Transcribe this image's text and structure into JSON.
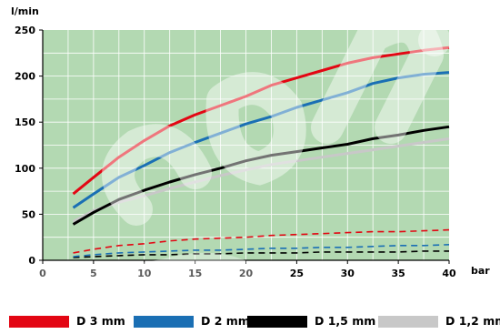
{
  "chart_data": {
    "type": "line",
    "ylabel": "l/min",
    "xlabel": "bar",
    "xlim": [
      0,
      40
    ],
    "ylim": [
      0,
      250
    ],
    "xticks": [
      0,
      5,
      10,
      15,
      20,
      25,
      30,
      35,
      40
    ],
    "yticks": [
      0,
      50,
      100,
      150,
      200,
      250
    ],
    "grid": true,
    "background": "#b3d9b2",
    "legend_position": "bottom",
    "x": [
      3,
      5,
      7.5,
      10,
      12.5,
      15,
      17.5,
      20,
      22.5,
      25,
      27.5,
      30,
      32.5,
      35,
      37.5,
      40
    ],
    "series": [
      {
        "name": "D 3 mm",
        "color": "#e30613",
        "style": "solid",
        "values": [
          72,
          90,
          112,
          130,
          146,
          158,
          168,
          178,
          190,
          198,
          206,
          214,
          220,
          224,
          228,
          231
        ]
      },
      {
        "name": "D 2 mm",
        "color": "#1a6fb4",
        "style": "solid",
        "values": [
          57,
          72,
          90,
          103,
          117,
          128,
          138,
          148,
          156,
          166,
          174,
          182,
          192,
          198,
          202,
          204
        ]
      },
      {
        "name": "D 1,5 mm",
        "color": "#000000",
        "style": "solid",
        "values": [
          39,
          52,
          66,
          76,
          85,
          93,
          100,
          108,
          114,
          118,
          122,
          126,
          132,
          136,
          141,
          145
        ]
      },
      {
        "name": "D 1,2 mm",
        "color": "#c8c8c8",
        "style": "solid",
        "values": [
          42,
          54,
          63,
          70,
          78,
          85,
          92,
          98,
          104,
          108,
          112,
          116,
          120,
          124,
          128,
          132
        ]
      },
      {
        "name": "D 3 mm",
        "color": "#e30613",
        "style": "dashed",
        "values": [
          8,
          12,
          16,
          18,
          21,
          23,
          24,
          25,
          27,
          28,
          29,
          30,
          31,
          31,
          32,
          33
        ]
      },
      {
        "name": "D 2 mm",
        "color": "#1a6fb4",
        "style": "dashed",
        "values": [
          4,
          6,
          8,
          9,
          10,
          11,
          11,
          12,
          13,
          13,
          14,
          14,
          15,
          16,
          16,
          17
        ]
      },
      {
        "name": "D 1,5 mm",
        "color": "#000000",
        "style": "dashed",
        "values": [
          3,
          4,
          5,
          6,
          6,
          7,
          7,
          8,
          8,
          8,
          9,
          9,
          9,
          9,
          10,
          10
        ]
      }
    ]
  },
  "legend": [
    {
      "label": "D 3 mm",
      "color": "#e30613"
    },
    {
      "label": "D 2 mm",
      "color": "#1a6fb4"
    },
    {
      "label": "D 1,5 mm",
      "color": "#000000"
    },
    {
      "label": "D 1,2 mm",
      "color": "#c8c8c8"
    }
  ]
}
